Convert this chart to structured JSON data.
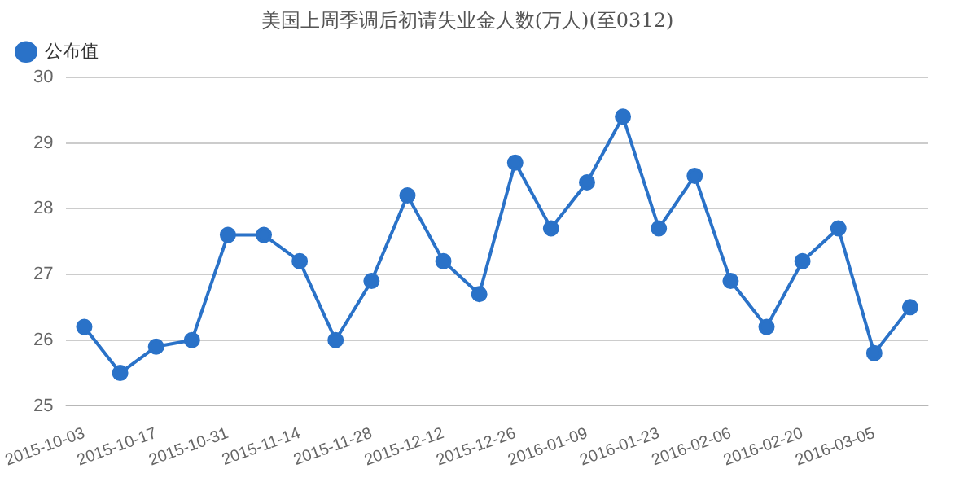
{
  "chart_data": {
    "type": "line",
    "title": "美国上周季调后初请失业金人数(万人)(至0312)",
    "categories": [
      "2015-10-03",
      null,
      "2015-10-17",
      null,
      "2015-10-31",
      null,
      "2015-11-14",
      null,
      "2015-11-28",
      null,
      "2015-12-12",
      null,
      "2015-12-26",
      null,
      "2016-01-09",
      null,
      "2016-01-23",
      null,
      "2016-02-06",
      null,
      "2016-02-20",
      null,
      "2016-03-05",
      null
    ],
    "series": [
      {
        "name": "公布值",
        "color": "#2a72c8",
        "values": [
          26.2,
          25.5,
          25.9,
          26.0,
          27.6,
          27.6,
          27.2,
          26.0,
          26.9,
          28.2,
          27.2,
          26.7,
          28.7,
          27.7,
          28.4,
          29.4,
          27.7,
          28.5,
          26.9,
          26.2,
          27.2,
          27.7,
          25.8,
          26.5
        ]
      }
    ],
    "ylim": [
      25,
      30
    ],
    "yticks": [
      25,
      26,
      27,
      28,
      29,
      30
    ],
    "grid": "y",
    "legend": "top left",
    "marker": "circle",
    "line_style": "solid"
  }
}
